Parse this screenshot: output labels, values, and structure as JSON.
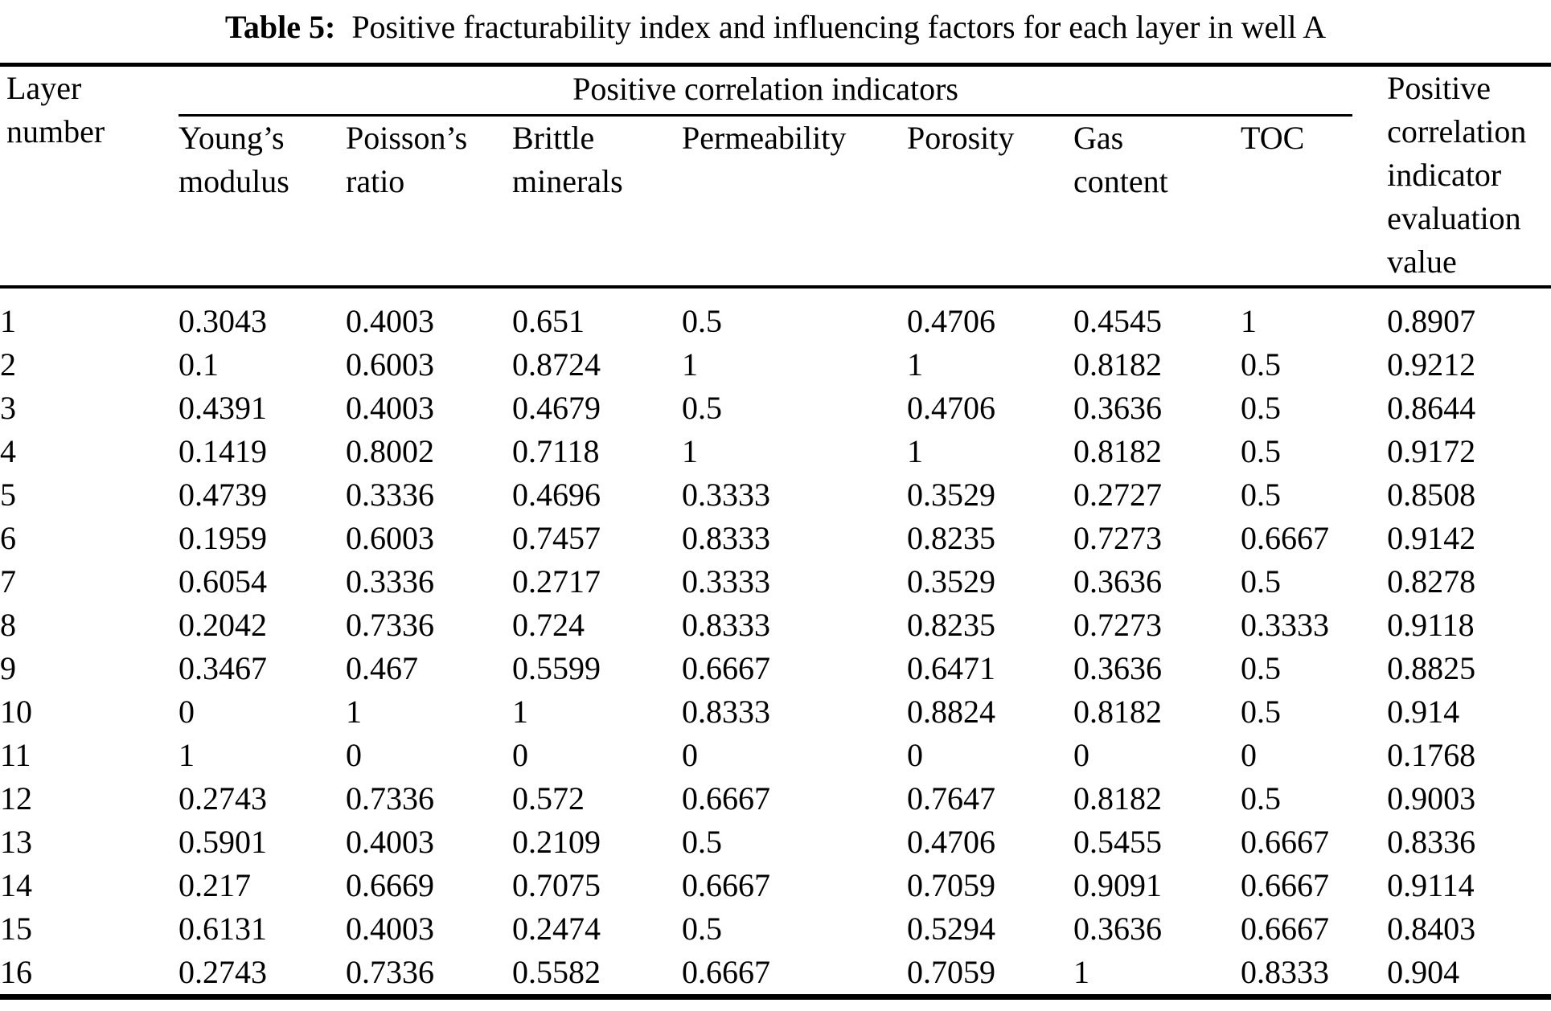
{
  "title": {
    "label": "Table 5:",
    "text": "Positive fracturability index and influencing factors for each layer in well A"
  },
  "table": {
    "layer_header": [
      "Layer",
      "number"
    ],
    "group_header": "Positive correlation indicators",
    "sub_headers": [
      [
        "Young’s",
        "modulus"
      ],
      [
        "Poisson’s",
        "ratio"
      ],
      [
        "Brittle",
        "minerals"
      ],
      [
        "Permeability"
      ],
      [
        "Porosity"
      ],
      [
        "Gas",
        "content"
      ],
      [
        "TOC"
      ]
    ],
    "eval_header": [
      "Positive",
      "correlation",
      "indicator",
      "evaluation",
      "value"
    ],
    "rows": [
      {
        "layer": "1",
        "values": [
          "0.3043",
          "0.4003",
          "0.651",
          "0.5",
          "0.4706",
          "0.4545",
          "1"
        ],
        "evaluation": "0.8907"
      },
      {
        "layer": "2",
        "values": [
          "0.1",
          "0.6003",
          "0.8724",
          "1",
          "1",
          "0.8182",
          "0.5"
        ],
        "evaluation": "0.9212"
      },
      {
        "layer": "3",
        "values": [
          "0.4391",
          "0.4003",
          "0.4679",
          "0.5",
          "0.4706",
          "0.3636",
          "0.5"
        ],
        "evaluation": "0.8644"
      },
      {
        "layer": "4",
        "values": [
          "0.1419",
          "0.8002",
          "0.7118",
          "1",
          "1",
          "0.8182",
          "0.5"
        ],
        "evaluation": "0.9172"
      },
      {
        "layer": "5",
        "values": [
          "0.4739",
          "0.3336",
          "0.4696",
          "0.3333",
          "0.3529",
          "0.2727",
          "0.5"
        ],
        "evaluation": "0.8508"
      },
      {
        "layer": "6",
        "values": [
          "0.1959",
          "0.6003",
          "0.7457",
          "0.8333",
          "0.8235",
          "0.7273",
          "0.6667"
        ],
        "evaluation": "0.9142"
      },
      {
        "layer": "7",
        "values": [
          "0.6054",
          "0.3336",
          "0.2717",
          "0.3333",
          "0.3529",
          "0.3636",
          "0.5"
        ],
        "evaluation": "0.8278"
      },
      {
        "layer": "8",
        "values": [
          "0.2042",
          "0.7336",
          "0.724",
          "0.8333",
          "0.8235",
          "0.7273",
          "0.3333"
        ],
        "evaluation": "0.9118"
      },
      {
        "layer": "9",
        "values": [
          "0.3467",
          "0.467",
          "0.5599",
          "0.6667",
          "0.6471",
          "0.3636",
          "0.5"
        ],
        "evaluation": "0.8825"
      },
      {
        "layer": "10",
        "values": [
          "0",
          "1",
          "1",
          "0.8333",
          "0.8824",
          "0.8182",
          "0.5"
        ],
        "evaluation": "0.914"
      },
      {
        "layer": "11",
        "values": [
          "1",
          "0",
          "0",
          "0",
          "0",
          "0",
          "0"
        ],
        "evaluation": "0.1768"
      },
      {
        "layer": "12",
        "values": [
          "0.2743",
          "0.7336",
          "0.572",
          "0.6667",
          "0.7647",
          "0.8182",
          "0.5"
        ],
        "evaluation": "0.9003"
      },
      {
        "layer": "13",
        "values": [
          "0.5901",
          "0.4003",
          "0.2109",
          "0.5",
          "0.4706",
          "0.5455",
          "0.6667"
        ],
        "evaluation": "0.8336"
      },
      {
        "layer": "14",
        "values": [
          "0.217",
          "0.6669",
          "0.7075",
          "0.6667",
          "0.7059",
          "0.9091",
          "0.6667"
        ],
        "evaluation": "0.9114"
      },
      {
        "layer": "15",
        "values": [
          "0.6131",
          "0.4003",
          "0.2474",
          "0.5",
          "0.5294",
          "0.3636",
          "0.6667"
        ],
        "evaluation": "0.8403"
      },
      {
        "layer": "16",
        "values": [
          "0.2743",
          "0.7336",
          "0.5582",
          "0.6667",
          "0.7059",
          "1",
          "0.8333"
        ],
        "evaluation": "0.904"
      }
    ]
  }
}
